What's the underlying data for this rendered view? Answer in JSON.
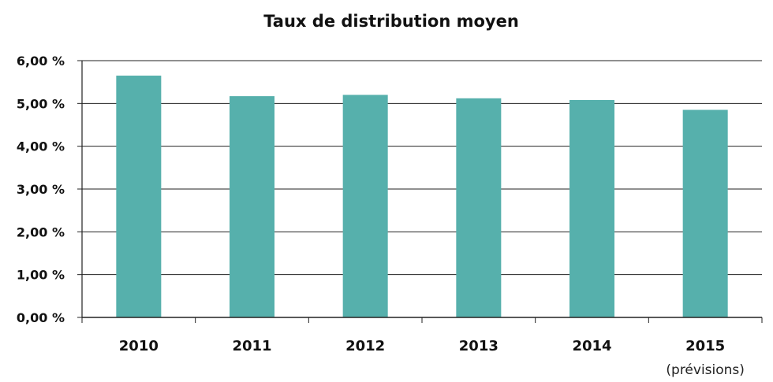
{
  "chart_data": {
    "type": "bar",
    "title": "Taux de distribution moyen",
    "categories": [
      "2010",
      "2011",
      "2012",
      "2013",
      "2014",
      "2015"
    ],
    "category_notes": [
      "",
      "",
      "",
      "",
      "",
      "(prévisions)"
    ],
    "values": [
      5.65,
      5.17,
      5.2,
      5.12,
      5.08,
      4.85
    ],
    "unit": "%",
    "ylim": [
      0,
      6
    ],
    "yticks": [
      0,
      1,
      2,
      3,
      4,
      5,
      6
    ],
    "ytick_labels": [
      "0,00 %",
      "1,00 %",
      "2,00 %",
      "3,00 %",
      "4,00 %",
      "5,00 %",
      "6,00 %"
    ],
    "xlabel": "",
    "ylabel": "",
    "grid": true,
    "legend": "none",
    "colors": {
      "bar": "#56b0ac",
      "grid": "#222222",
      "axis": "#222222"
    }
  }
}
